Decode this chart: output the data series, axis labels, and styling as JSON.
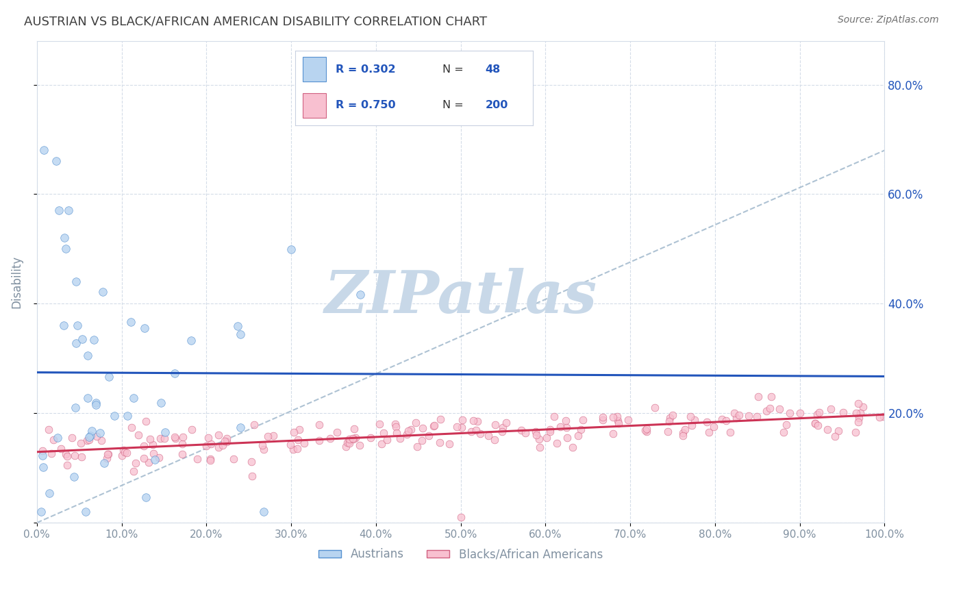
{
  "title": "AUSTRIAN VS BLACK/AFRICAN AMERICAN DISABILITY CORRELATION CHART",
  "source": "Source: ZipAtlas.com",
  "ylabel": "Disability",
  "xlim": [
    0,
    1.0
  ],
  "ylim": [
    0,
    0.88
  ],
  "xtick_vals": [
    0,
    0.1,
    0.2,
    0.3,
    0.4,
    0.5,
    0.6,
    0.7,
    0.8,
    0.9,
    1.0
  ],
  "ytick_vals": [
    0.0,
    0.2,
    0.4,
    0.6,
    0.8
  ],
  "right_ytick_labels": [
    "",
    "20.0%",
    "40.0%",
    "60.0%",
    "80.0%"
  ],
  "watermark": "ZIPatlas",
  "austrians": {
    "color": "#b8d4f0",
    "edge_color": "#5590d0",
    "trend_color": "#2255bb",
    "r": 0.302,
    "n": 48
  },
  "blacks": {
    "color": "#f8c0d0",
    "edge_color": "#d06080",
    "trend_color": "#cc3355",
    "r": 0.75,
    "n": 200
  },
  "legend_border_color": "#c8d0e0",
  "legend_text_color": "#2255bb",
  "right_label_color": "#2255bb",
  "dashed_color": "#a0b8cc",
  "watermark_color": "#c8d8e8",
  "grid_color": "#d4dce8",
  "axis_tick_color": "#8090a0",
  "bg_color": "#ffffff",
  "title_color": "#404040",
  "source_color": "#707070"
}
